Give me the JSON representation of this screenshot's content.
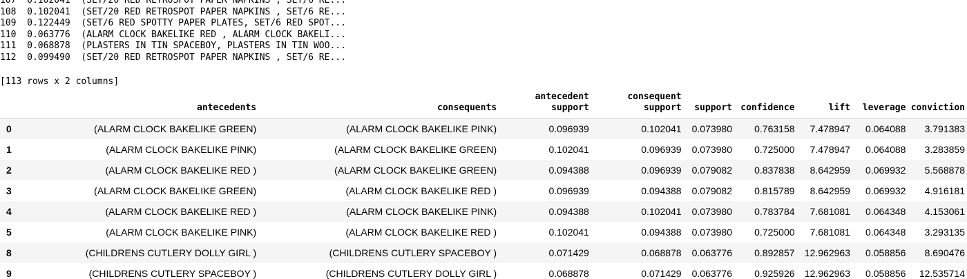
{
  "output_lines": [
    {
      "index": "107",
      "value": "0.102041",
      "items": "(SET/20 RED RETROSPOT PAPER NAPKINS , SET/6 RE..."
    },
    {
      "index": "108",
      "value": "0.102041",
      "items": "(SET/20 RED RETROSPOT PAPER NAPKINS , SET/6 RE..."
    },
    {
      "index": "109",
      "value": "0.122449",
      "items": "(SET/6 RED SPOTTY PAPER PLATES, SET/6 RED SPOT..."
    },
    {
      "index": "110",
      "value": "0.063776",
      "items": "(ALARM CLOCK BAKELIKE RED , ALARM CLOCK BAKELI..."
    },
    {
      "index": "111",
      "value": "0.068878",
      "items": "(PLASTERS IN TIN SPACEBOY, PLASTERS IN TIN WOO..."
    },
    {
      "index": "112",
      "value": "0.099490",
      "items": "(SET/20 RED RETROSPOT PAPER NAPKINS , SET/6 RE..."
    }
  ],
  "summary": "[113 rows x 2 columns]",
  "table": {
    "columns": [
      [
        "antecedents"
      ],
      [
        "consequents"
      ],
      [
        "antecedent",
        "support"
      ],
      [
        "consequent",
        "support"
      ],
      [
        "support"
      ],
      [
        "confidence"
      ],
      [
        "lift"
      ],
      [
        "leverage"
      ],
      [
        "conviction"
      ]
    ],
    "rows": [
      {
        "idx": "0",
        "cells": [
          "(ALARM CLOCK BAKELIKE GREEN)",
          "(ALARM CLOCK BAKELIKE PINK)",
          "0.096939",
          "0.102041",
          "0.073980",
          "0.763158",
          "7.478947",
          "0.064088",
          "3.791383"
        ]
      },
      {
        "idx": "1",
        "cells": [
          "(ALARM CLOCK BAKELIKE PINK)",
          "(ALARM CLOCK BAKELIKE GREEN)",
          "0.102041",
          "0.096939",
          "0.073980",
          "0.725000",
          "7.478947",
          "0.064088",
          "3.283859"
        ]
      },
      {
        "idx": "2",
        "cells": [
          "(ALARM CLOCK BAKELIKE RED )",
          "(ALARM CLOCK BAKELIKE GREEN)",
          "0.094388",
          "0.096939",
          "0.079082",
          "0.837838",
          "8.642959",
          "0.069932",
          "5.568878"
        ]
      },
      {
        "idx": "3",
        "cells": [
          "(ALARM CLOCK BAKELIKE GREEN)",
          "(ALARM CLOCK BAKELIKE RED )",
          "0.096939",
          "0.094388",
          "0.079082",
          "0.815789",
          "8.642959",
          "0.069932",
          "4.916181"
        ]
      },
      {
        "idx": "4",
        "cells": [
          "(ALARM CLOCK BAKELIKE RED )",
          "(ALARM CLOCK BAKELIKE PINK)",
          "0.094388",
          "0.102041",
          "0.073980",
          "0.783784",
          "7.681081",
          "0.064348",
          "4.153061"
        ]
      },
      {
        "idx": "5",
        "cells": [
          "(ALARM CLOCK BAKELIKE PINK)",
          "(ALARM CLOCK BAKELIKE RED )",
          "0.102041",
          "0.094388",
          "0.073980",
          "0.725000",
          "7.681081",
          "0.064348",
          "3.293135"
        ]
      },
      {
        "idx": "8",
        "cells": [
          "(CHILDRENS CUTLERY DOLLY GIRL )",
          "(CHILDRENS CUTLERY SPACEBOY )",
          "0.071429",
          "0.068878",
          "0.063776",
          "0.892857",
          "12.962963",
          "0.058856",
          "8.690476"
        ]
      },
      {
        "idx": "9",
        "cells": [
          "(CHILDRENS CUTLERY SPACEBOY )",
          "(CHILDRENS CUTLERY DOLLY GIRL )",
          "0.068878",
          "0.071429",
          "0.063776",
          "0.925926",
          "12.962963",
          "0.058856",
          "12.535714"
        ]
      }
    ]
  },
  "colors": {
    "row_stripe": "#f5f5f5",
    "header_rule": "#d9d9d9"
  }
}
